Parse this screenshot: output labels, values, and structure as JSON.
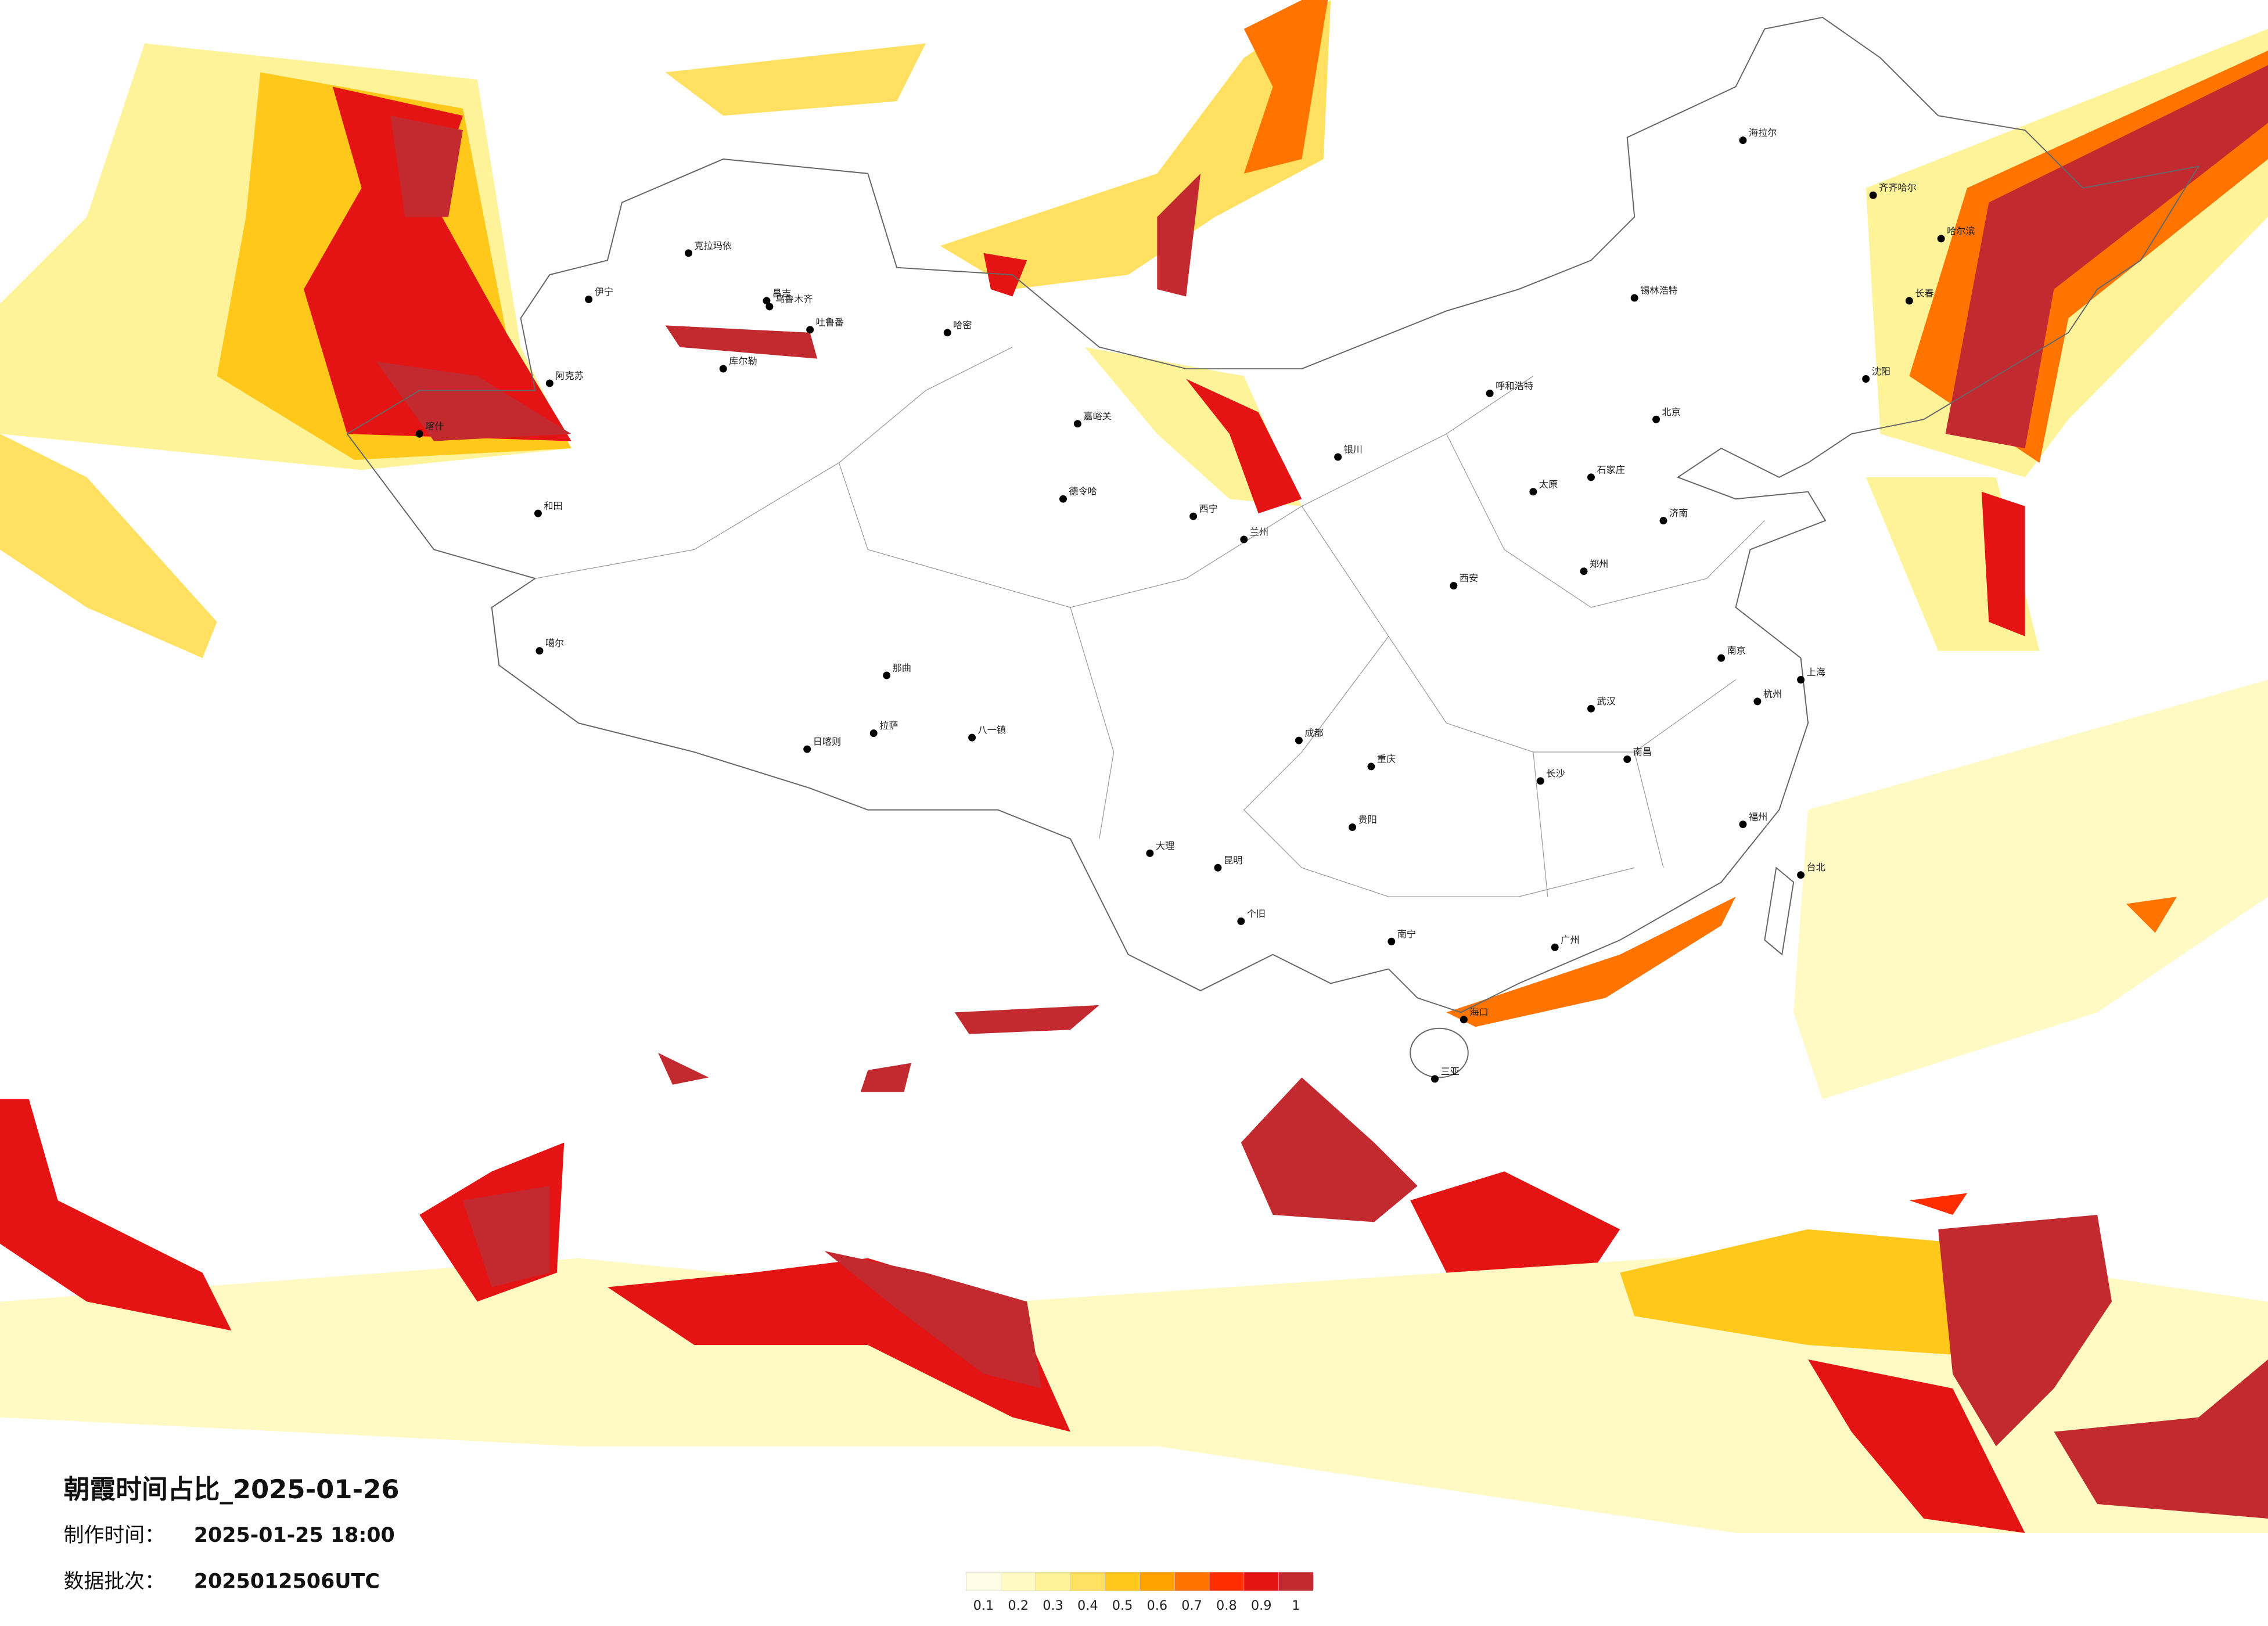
{
  "title": "朝霞时间占比_2025-01-26",
  "info": [
    {
      "label": "制作时间：",
      "value": "2025-01-25 18:00"
    },
    {
      "label": "数据批次：",
      "value": "2025012506UTC"
    }
  ],
  "legend": {
    "colors": [
      "#fffde6",
      "#fffac4",
      "#fff39a",
      "#ffe060",
      "#ffc81a",
      "#ffa200",
      "#ff7300",
      "#ff2d00",
      "#e41414",
      "#c22a30"
    ],
    "ticks": [
      0.1,
      0.2,
      0.3,
      0.4,
      0.5,
      0.6,
      0.7,
      0.8,
      0.9,
      1
    ]
  },
  "cities": [
    "克拉玛依",
    "昌吉",
    "乌鲁木齐",
    "吐鲁番",
    "库尔勒",
    "哈密",
    "伊宁",
    "阿克苏",
    "喀什",
    "和田",
    "噶尔",
    "日喀则",
    "拉萨",
    "八一镇",
    "那曲",
    "嘉峪关",
    "德令哈",
    "西宁",
    "银川",
    "呼和浩特",
    "海拉尔",
    "齐齐哈尔",
    "哈尔滨",
    "长春",
    "沈阳",
    "锡林浩特",
    "北京",
    "石家庄",
    "太原",
    "郑州",
    "西安",
    "成都",
    "重庆",
    "贵阳",
    "昆明",
    "南宁",
    "广州",
    "海口",
    "三亚",
    "台北",
    "上海",
    "武汉",
    "长沙",
    "南昌",
    "南京",
    "济南",
    "兰州",
    "大理",
    "个旧",
    "杭州",
    "福州"
  ]
}
